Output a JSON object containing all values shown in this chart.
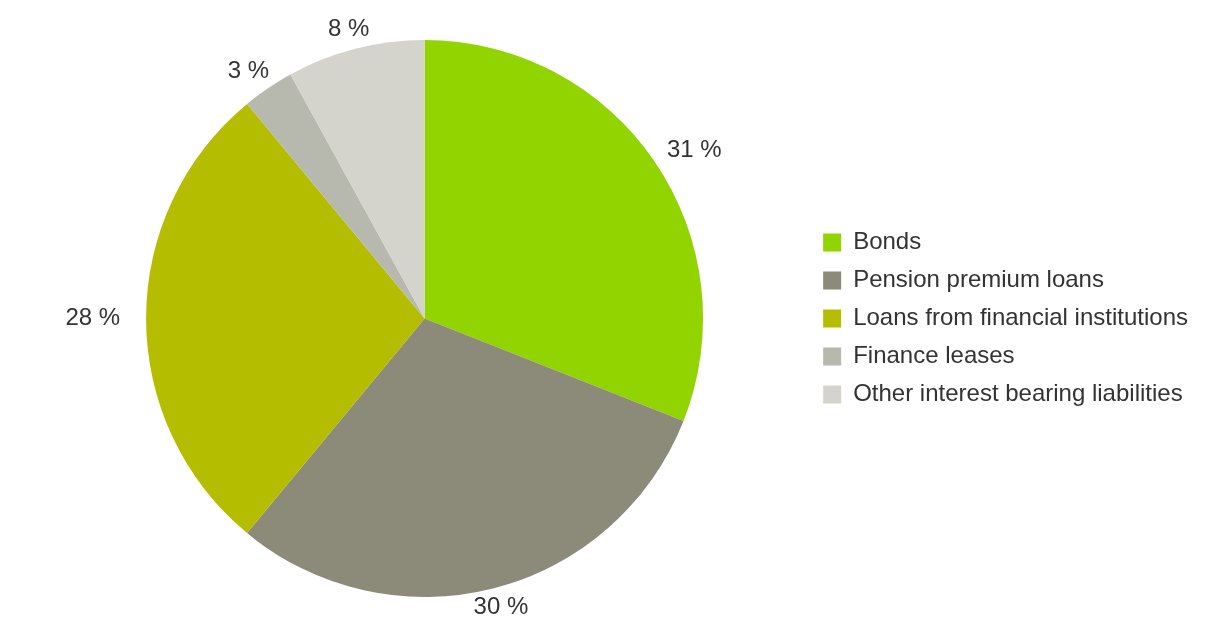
{
  "chart_data": {
    "type": "pie",
    "categories": [
      "Bonds",
      "Pension premium loans",
      "Loans from financial institutions",
      "Finance leases",
      "Other interest bearing liabilities"
    ],
    "values": [
      31,
      30,
      28,
      3,
      8
    ],
    "colors": [
      "#92d400",
      "#8c8a78",
      "#b5bd00",
      "#b7b8ae",
      "#d4d4cc"
    ],
    "value_labels": [
      "31 %",
      "30 %",
      "28 %",
      "3 %",
      "8 %"
    ],
    "legend": "right"
  }
}
